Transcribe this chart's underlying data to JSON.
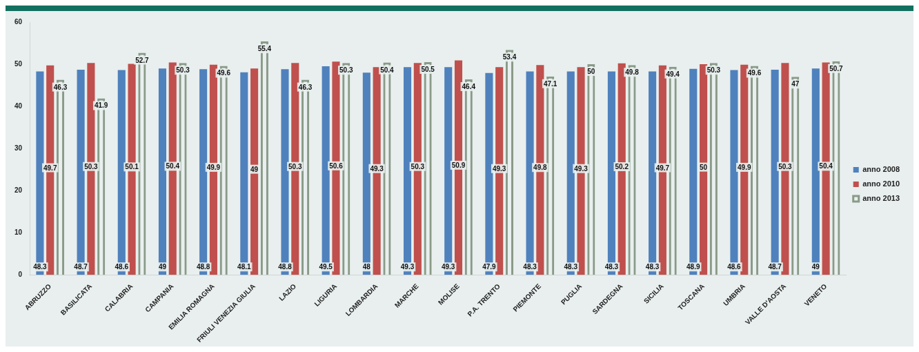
{
  "chart_data": {
    "type": "bar",
    "categories": [
      "ABRUZZO",
      "BASILICATA",
      "CALABRIA",
      "CAMPANIA",
      "EMILIA ROMAGNA",
      "FRIULI VENEZIA GIULIA",
      "LAZIO",
      "LIGURIA",
      "LOMBARDIA",
      "MARCHE",
      "MOLISE",
      "P.A. TRENTO",
      "PIEMONTE",
      "PUGLIA",
      "SARDEGNA",
      "SICILIA",
      "TOSCANA",
      "UMBRIA",
      "VALLE D'AOSTA",
      "VENETO"
    ],
    "series": [
      {
        "name": "anno 2008",
        "color": "#4f81bd",
        "values": [
          48.3,
          48.7,
          48.6,
          49,
          48.8,
          48.1,
          48.8,
          49.5,
          48,
          49.3,
          49.3,
          47.9,
          48.3,
          48.3,
          48.3,
          48.3,
          48.9,
          48.6,
          48.7,
          49
        ]
      },
      {
        "name": "anno 2010",
        "color": "#c0504d",
        "values": [
          49.7,
          50.3,
          50.1,
          50.4,
          49.9,
          49,
          50.3,
          50.6,
          49.3,
          50.3,
          50.9,
          49.3,
          49.8,
          49.3,
          50.2,
          49.7,
          50,
          49.9,
          50.3,
          50.4
        ]
      },
      {
        "name": "anno 2013",
        "color": "#8a9a88",
        "values": [
          46.3,
          41.9,
          52.7,
          50.3,
          49.6,
          55.4,
          46.3,
          50.3,
          50.4,
          50.5,
          46.4,
          53.4,
          47.1,
          50,
          49.8,
          49.4,
          50.3,
          49.6,
          47,
          50.7
        ]
      }
    ],
    "ylim": [
      0,
      60
    ],
    "yticks": [
      0,
      10,
      20,
      30,
      40,
      50,
      60
    ],
    "grid": false,
    "legend": "right",
    "data_labels": true
  }
}
